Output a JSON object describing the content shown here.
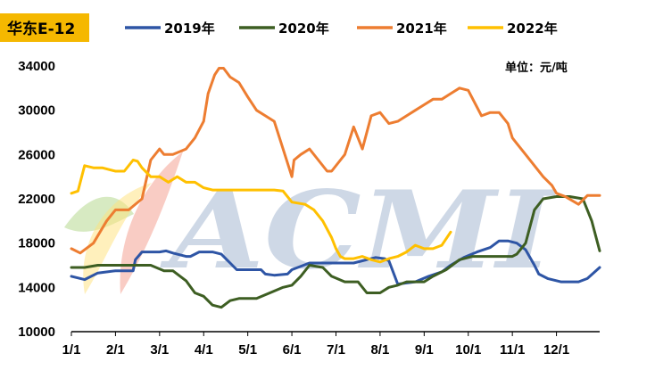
{
  "chart_data": {
    "type": "line",
    "title": "华东E-12",
    "unit_label": "单位：元/吨",
    "xlabel": "",
    "ylabel": "",
    "ylim": [
      10000,
      36000
    ],
    "yticks": [
      10000,
      14000,
      18000,
      22000,
      26000,
      30000,
      34000
    ],
    "xlim": [
      1,
      12.98
    ],
    "xticks": [
      {
        "label": "1/1",
        "x": 1
      },
      {
        "label": "2/1",
        "x": 2
      },
      {
        "label": "3/1",
        "x": 3
      },
      {
        "label": "4/1",
        "x": 4
      },
      {
        "label": "5/1",
        "x": 5
      },
      {
        "label": "6/1",
        "x": 6
      },
      {
        "label": "7/1",
        "x": 7
      },
      {
        "label": "8/1",
        "x": 8
      },
      {
        "label": "9/1",
        "x": 9
      },
      {
        "label": "10/1",
        "x": 10
      },
      {
        "label": "11/1",
        "x": 11
      },
      {
        "label": "12/1",
        "x": 12
      }
    ],
    "legend_position": "top",
    "grid": false,
    "watermark": "ACMI",
    "series": [
      {
        "name": "2019年",
        "color": "#2e55a5",
        "x": [
          1,
          1.3,
          1.6,
          2.0,
          2.4,
          2.45,
          2.6,
          3.0,
          3.15,
          3.3,
          3.6,
          3.7,
          3.9,
          4.2,
          4.4,
          4.6,
          4.75,
          4.9,
          5.3,
          5.4,
          5.6,
          5.9,
          6.0,
          6.4,
          6.7,
          6.9,
          7.2,
          7.4,
          7.6,
          7.9,
          8.1,
          8.2,
          8.4,
          8.8,
          9.1,
          9.4,
          9.6,
          9.9,
          10.2,
          10.5,
          10.7,
          10.9,
          11.1,
          11.3,
          11.5,
          11.6,
          11.8,
          12.1,
          12.3,
          12.5,
          12.7,
          12.98
        ],
        "values": [
          15000,
          14700,
          15300,
          15500,
          15500,
          16500,
          17200,
          17200,
          17300,
          17100,
          16800,
          16800,
          17200,
          17200,
          17000,
          16200,
          15600,
          15600,
          15600,
          15200,
          15100,
          15200,
          15600,
          16200,
          16200,
          16200,
          16200,
          16200,
          16400,
          16700,
          16600,
          16400,
          14300,
          14500,
          15000,
          15400,
          16000,
          16700,
          17200,
          17600,
          18200,
          18200,
          18000,
          17400,
          16000,
          15200,
          14800,
          14500,
          14500,
          14500,
          14800,
          15800
        ]
      },
      {
        "name": "2020年",
        "color": "#3d5e22",
        "x": [
          1,
          1.3,
          1.6,
          2.0,
          2.4,
          2.8,
          3.1,
          3.3,
          3.6,
          3.8,
          4.0,
          4.2,
          4.4,
          4.6,
          4.8,
          5.0,
          5.2,
          5.5,
          5.8,
          6.0,
          6.2,
          6.4,
          6.7,
          6.9,
          7.2,
          7.5,
          7.7,
          8.0,
          8.2,
          8.4,
          8.6,
          8.8,
          9.0,
          9.2,
          9.5,
          9.8,
          10.1,
          10.4,
          10.6,
          10.8,
          11.0,
          11.1,
          11.3,
          11.5,
          11.7,
          12.0,
          12.3,
          12.6,
          12.8,
          12.98
        ],
        "values": [
          15800,
          15800,
          16000,
          16000,
          16000,
          16000,
          15500,
          15500,
          14600,
          13500,
          13200,
          12400,
          12200,
          12800,
          13000,
          13000,
          13000,
          13500,
          14000,
          14200,
          15000,
          16000,
          15800,
          15000,
          14500,
          14500,
          13500,
          13500,
          14000,
          14200,
          14500,
          14500,
          14500,
          15000,
          15600,
          16500,
          16800,
          16800,
          16800,
          16800,
          16800,
          17000,
          18000,
          21000,
          22000,
          22200,
          22200,
          22000,
          20000,
          17300
        ]
      },
      {
        "name": "2021年",
        "color": "#ed7d31",
        "x": [
          1,
          1.2,
          1.5,
          1.8,
          2.0,
          2.3,
          2.6,
          2.8,
          3.0,
          3.1,
          3.3,
          3.6,
          3.8,
          4.0,
          4.1,
          4.25,
          4.35,
          4.45,
          4.6,
          4.8,
          5.0,
          5.2,
          5.4,
          5.6,
          5.8,
          6.0,
          6.05,
          6.2,
          6.4,
          6.6,
          6.8,
          6.9,
          7.2,
          7.4,
          7.6,
          7.8,
          8.0,
          8.2,
          8.4,
          8.6,
          8.8,
          9.0,
          9.2,
          9.4,
          9.6,
          9.8,
          10.0,
          10.3,
          10.5,
          10.7,
          10.9,
          11.0,
          11.1,
          11.2,
          11.3,
          11.5,
          11.7,
          11.9,
          12.0,
          12.2,
          12.5,
          12.7,
          12.98
        ],
        "values": [
          17500,
          17100,
          18000,
          20000,
          21000,
          21000,
          22000,
          25500,
          26500,
          26000,
          26000,
          26500,
          27500,
          29000,
          31500,
          33200,
          33800,
          33800,
          33000,
          32500,
          31200,
          30000,
          29500,
          29000,
          26500,
          24000,
          25500,
          26000,
          26500,
          25500,
          24500,
          24500,
          26000,
          28500,
          26500,
          29500,
          29800,
          28800,
          29000,
          29500,
          30000,
          30500,
          31000,
          31000,
          31500,
          32000,
          31800,
          29500,
          29800,
          29800,
          28800,
          27500,
          27000,
          26500,
          26000,
          25000,
          24000,
          23200,
          22500,
          22200,
          21500,
          22300,
          22300
        ]
      },
      {
        "name": "2022年",
        "color": "#ffc000",
        "x": [
          1,
          1.15,
          1.3,
          1.5,
          1.7,
          2.0,
          2.2,
          2.4,
          2.5,
          2.6,
          2.8,
          3.0,
          3.2,
          3.4,
          3.6,
          3.8,
          4.0,
          4.2,
          4.4,
          4.6,
          4.8,
          5.0,
          5.2,
          5.4,
          5.6,
          5.8,
          6.0,
          6.3,
          6.5,
          6.7,
          6.9,
          7.0,
          7.1,
          7.2,
          7.4,
          7.6,
          7.8,
          8.0,
          8.2,
          8.4,
          8.6,
          8.8,
          9.0,
          9.2,
          9.4,
          9.6
        ],
        "values": [
          22500,
          22700,
          25000,
          24800,
          24800,
          24500,
          24500,
          25500,
          25400,
          24800,
          24000,
          24000,
          23500,
          24000,
          23500,
          23500,
          23000,
          22800,
          22800,
          22800,
          22800,
          22800,
          22800,
          22800,
          22800,
          22700,
          21700,
          21500,
          21000,
          20000,
          18500,
          17500,
          16800,
          16600,
          16600,
          16800,
          16500,
          16300,
          16600,
          16800,
          17200,
          17800,
          17500,
          17500,
          17800,
          19000
        ]
      }
    ]
  }
}
